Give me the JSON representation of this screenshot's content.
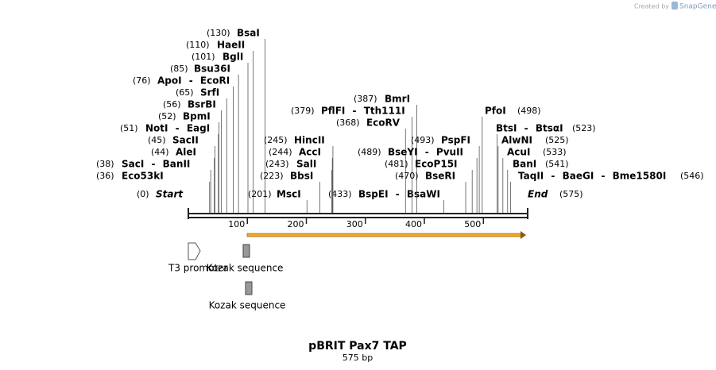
{
  "header": {
    "credit": "Created by",
    "brand": "SnapGene"
  },
  "title": "pBRIT Pax7 TAP",
  "subtitle": "575 bp",
  "length": 575,
  "ruler_ticks": [
    100,
    200,
    300,
    400,
    500
  ],
  "features": [
    "T3 promoter",
    "Kozak sequence",
    "Kozak sequence"
  ],
  "sites": [
    {
      "position": {
        "value": 130,
        "label": "(130)"
      },
      "name": "BsaI"
    },
    {
      "position": {
        "value": 110,
        "label": "(110)"
      },
      "name": "HaeII"
    },
    {
      "position": {
        "value": 101,
        "label": "(101)"
      },
      "name": "BglI"
    },
    {
      "position": {
        "value": 85,
        "label": "(85)"
      },
      "name": "Bsu36I"
    },
    {
      "position": {
        "value": 76,
        "label": "(76)"
      },
      "name": "ApoI - EcoRI"
    },
    {
      "position": {
        "value": 65,
        "label": "(65)"
      },
      "name": "SrfI"
    },
    {
      "position": {
        "value": 56,
        "label": "(56)"
      },
      "name": "BsrBI"
    },
    {
      "position": {
        "value": 52,
        "label": "(52)"
      },
      "name": "BpmI"
    },
    {
      "position": {
        "value": 51,
        "label": "(51)"
      },
      "name": "NotI - EagI"
    },
    {
      "position": {
        "value": 45,
        "label": "(45)"
      },
      "name": "SacII"
    },
    {
      "position": {
        "value": 44,
        "label": "(44)"
      },
      "name": "AleI"
    },
    {
      "position": {
        "value": 38,
        "label": "(38)"
      },
      "name": "SacI - BanII"
    },
    {
      "position": {
        "value": 36,
        "label": "(36)"
      },
      "name": "Eco53kI"
    },
    {
      "position": {
        "value": 0,
        "label": "(0)"
      },
      "name": "Start"
    },
    {
      "position": {
        "value": 201,
        "label": "(201)"
      },
      "name": "MscI"
    },
    {
      "position": {
        "value": 433,
        "label": "(433)"
      },
      "name": "BspEI - BsaWI"
    },
    {
      "position": {
        "value": 245,
        "label": "(245)"
      },
      "name": "HincII"
    },
    {
      "position": {
        "value": 244,
        "label": "(244)"
      },
      "name": "AccI"
    },
    {
      "position": {
        "value": 243,
        "label": "(243)"
      },
      "name": "SalI"
    },
    {
      "position": {
        "value": 223,
        "label": "(223)"
      },
      "name": "BbsI"
    },
    {
      "position": {
        "value": 387,
        "label": "(387)"
      },
      "name": "BmrI"
    },
    {
      "position": {
        "value": 379,
        "label": "(379)"
      },
      "name": "PflFI - Tth111I"
    },
    {
      "position": {
        "value": 368,
        "label": "(368)"
      },
      "name": "EcoRV"
    },
    {
      "position": {
        "value": 493,
        "label": "(493)"
      },
      "name": "PspFI"
    },
    {
      "position": {
        "value": 489,
        "label": "(489)"
      },
      "name": "BseYI - PvuII"
    },
    {
      "position": {
        "value": 481,
        "label": "(481)"
      },
      "name": "EcoP15I"
    },
    {
      "position": {
        "value": 470,
        "label": "(470)"
      },
      "name": "BseRI"
    },
    {
      "position": {
        "value": 498,
        "label": "(498)"
      },
      "name": "PfoI"
    },
    {
      "position": {
        "value": 523,
        "label": "(523)"
      },
      "name": "BtsI - BtsαI"
    },
    {
      "position": {
        "value": 525,
        "label": "(525)"
      },
      "name": "AlwNI"
    },
    {
      "position": {
        "value": 533,
        "label": "(533)"
      },
      "name": "AcuI"
    },
    {
      "position": {
        "value": 541,
        "label": "(541)"
      },
      "name": "BanI"
    },
    {
      "position": {
        "value": 546,
        "label": "(546)"
      },
      "name": "TaqII - BaeGI - Bme1580I"
    },
    {
      "position": {
        "value": 575,
        "label": "(575)"
      },
      "name": "End"
    }
  ]
}
